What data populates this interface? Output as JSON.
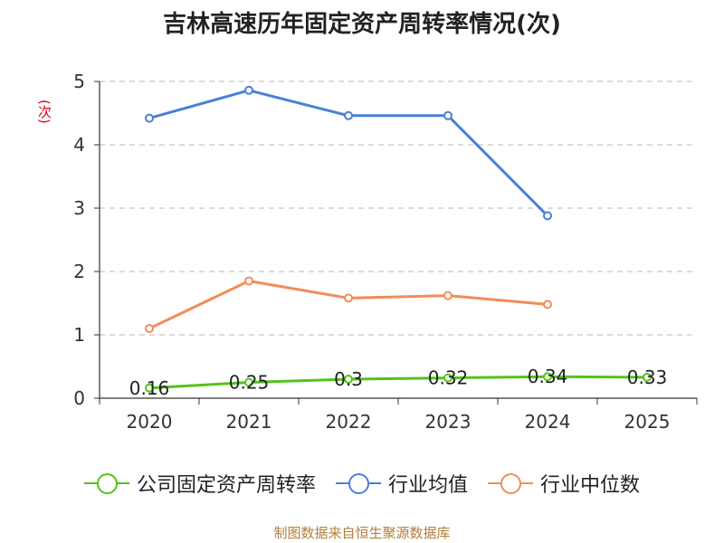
{
  "title": "吉林高速历年固定资产周转率情况(次)",
  "source_note": "制图数据来自恒生聚源数据库",
  "chart_data": {
    "type": "line",
    "title": "吉林高速历年固定资产周转率情况(次)",
    "ylabel": "(次)",
    "xlabel": "",
    "categories": [
      "2020",
      "2021",
      "2022",
      "2023",
      "2024",
      "2025"
    ],
    "ylim": [
      0,
      5
    ],
    "yticks": [
      0,
      1,
      2,
      3,
      4,
      5
    ],
    "grid": true,
    "legend_position": "bottom",
    "series": [
      {
        "name": "公司固定资产周转率",
        "color": "#52c41a",
        "values": [
          0.16,
          0.25,
          0.3,
          0.32,
          0.34,
          0.33
        ],
        "data_labels": [
          "0.16",
          "0.25",
          "0.3",
          "0.32",
          "0.34",
          "0.33"
        ]
      },
      {
        "name": "行业均值",
        "color": "#4a7fd9",
        "values": [
          4.42,
          4.86,
          4.46,
          4.46,
          2.88,
          null
        ]
      },
      {
        "name": "行业中位数",
        "color": "#f28c58",
        "values": [
          1.1,
          1.85,
          1.58,
          1.62,
          1.48,
          null
        ]
      }
    ]
  }
}
